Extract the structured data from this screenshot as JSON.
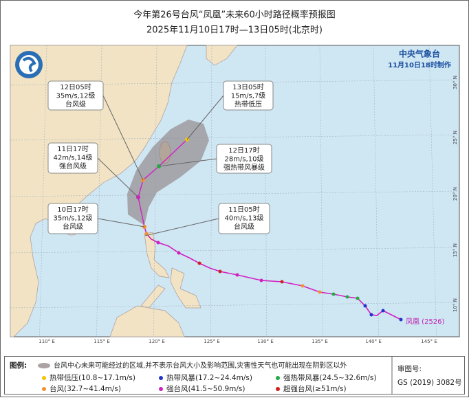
{
  "header": {
    "title": "今年第26号台风“凤凰”未来60小时路径概率预报图",
    "subtitle": "2025年11月10日17时—13日05时(北京时)"
  },
  "agency": {
    "name": "中央气象台",
    "issued": "11月10日18时制作"
  },
  "storm_label": "凤凰 (2526)",
  "lon_labels": [
    "110° E",
    "115° E",
    "120° E",
    "125° E",
    "130° E",
    "135° E",
    "140° E",
    "145° E"
  ],
  "lat_labels": [
    "30° N",
    "25° N",
    "20° N",
    "15° N",
    "10° N"
  ],
  "callouts": [
    {
      "time": "12日05时",
      "wind": "35m/s,12级",
      "level": "台风级"
    },
    {
      "time": "11日17时",
      "wind": "42m/s,14级",
      "level": "强台风级"
    },
    {
      "time": "10日17时",
      "wind": "35m/s,12级",
      "level": "台风级"
    },
    {
      "time": "13日05时",
      "wind": "15m/s,7级",
      "level": "热带低压"
    },
    {
      "time": "12日17时",
      "wind": "28m/s,10级",
      "level": "强热带风暴级"
    },
    {
      "time": "11日05时",
      "wind": "40m/s,13级",
      "level": "台风级"
    }
  ],
  "legend": {
    "title": "图例:",
    "cone": "台风中心未来可能经过的区域,并不表示台风大小及影响范围,灾害性天气也可能出现在阴影区以外",
    "items": [
      "热带低压(10.8~17.1m/s)",
      "热带风暴(17.2~24.4m/s)",
      "强热带风暴(24.5~32.6m/s)",
      "台风(32.7~41.4m/s)",
      "强台风(41.5~50.9m/s)",
      "超强台风(≥51m/s)"
    ]
  },
  "approval": {
    "label": "审图号:",
    "number": "GS (2019) 3082号"
  }
}
